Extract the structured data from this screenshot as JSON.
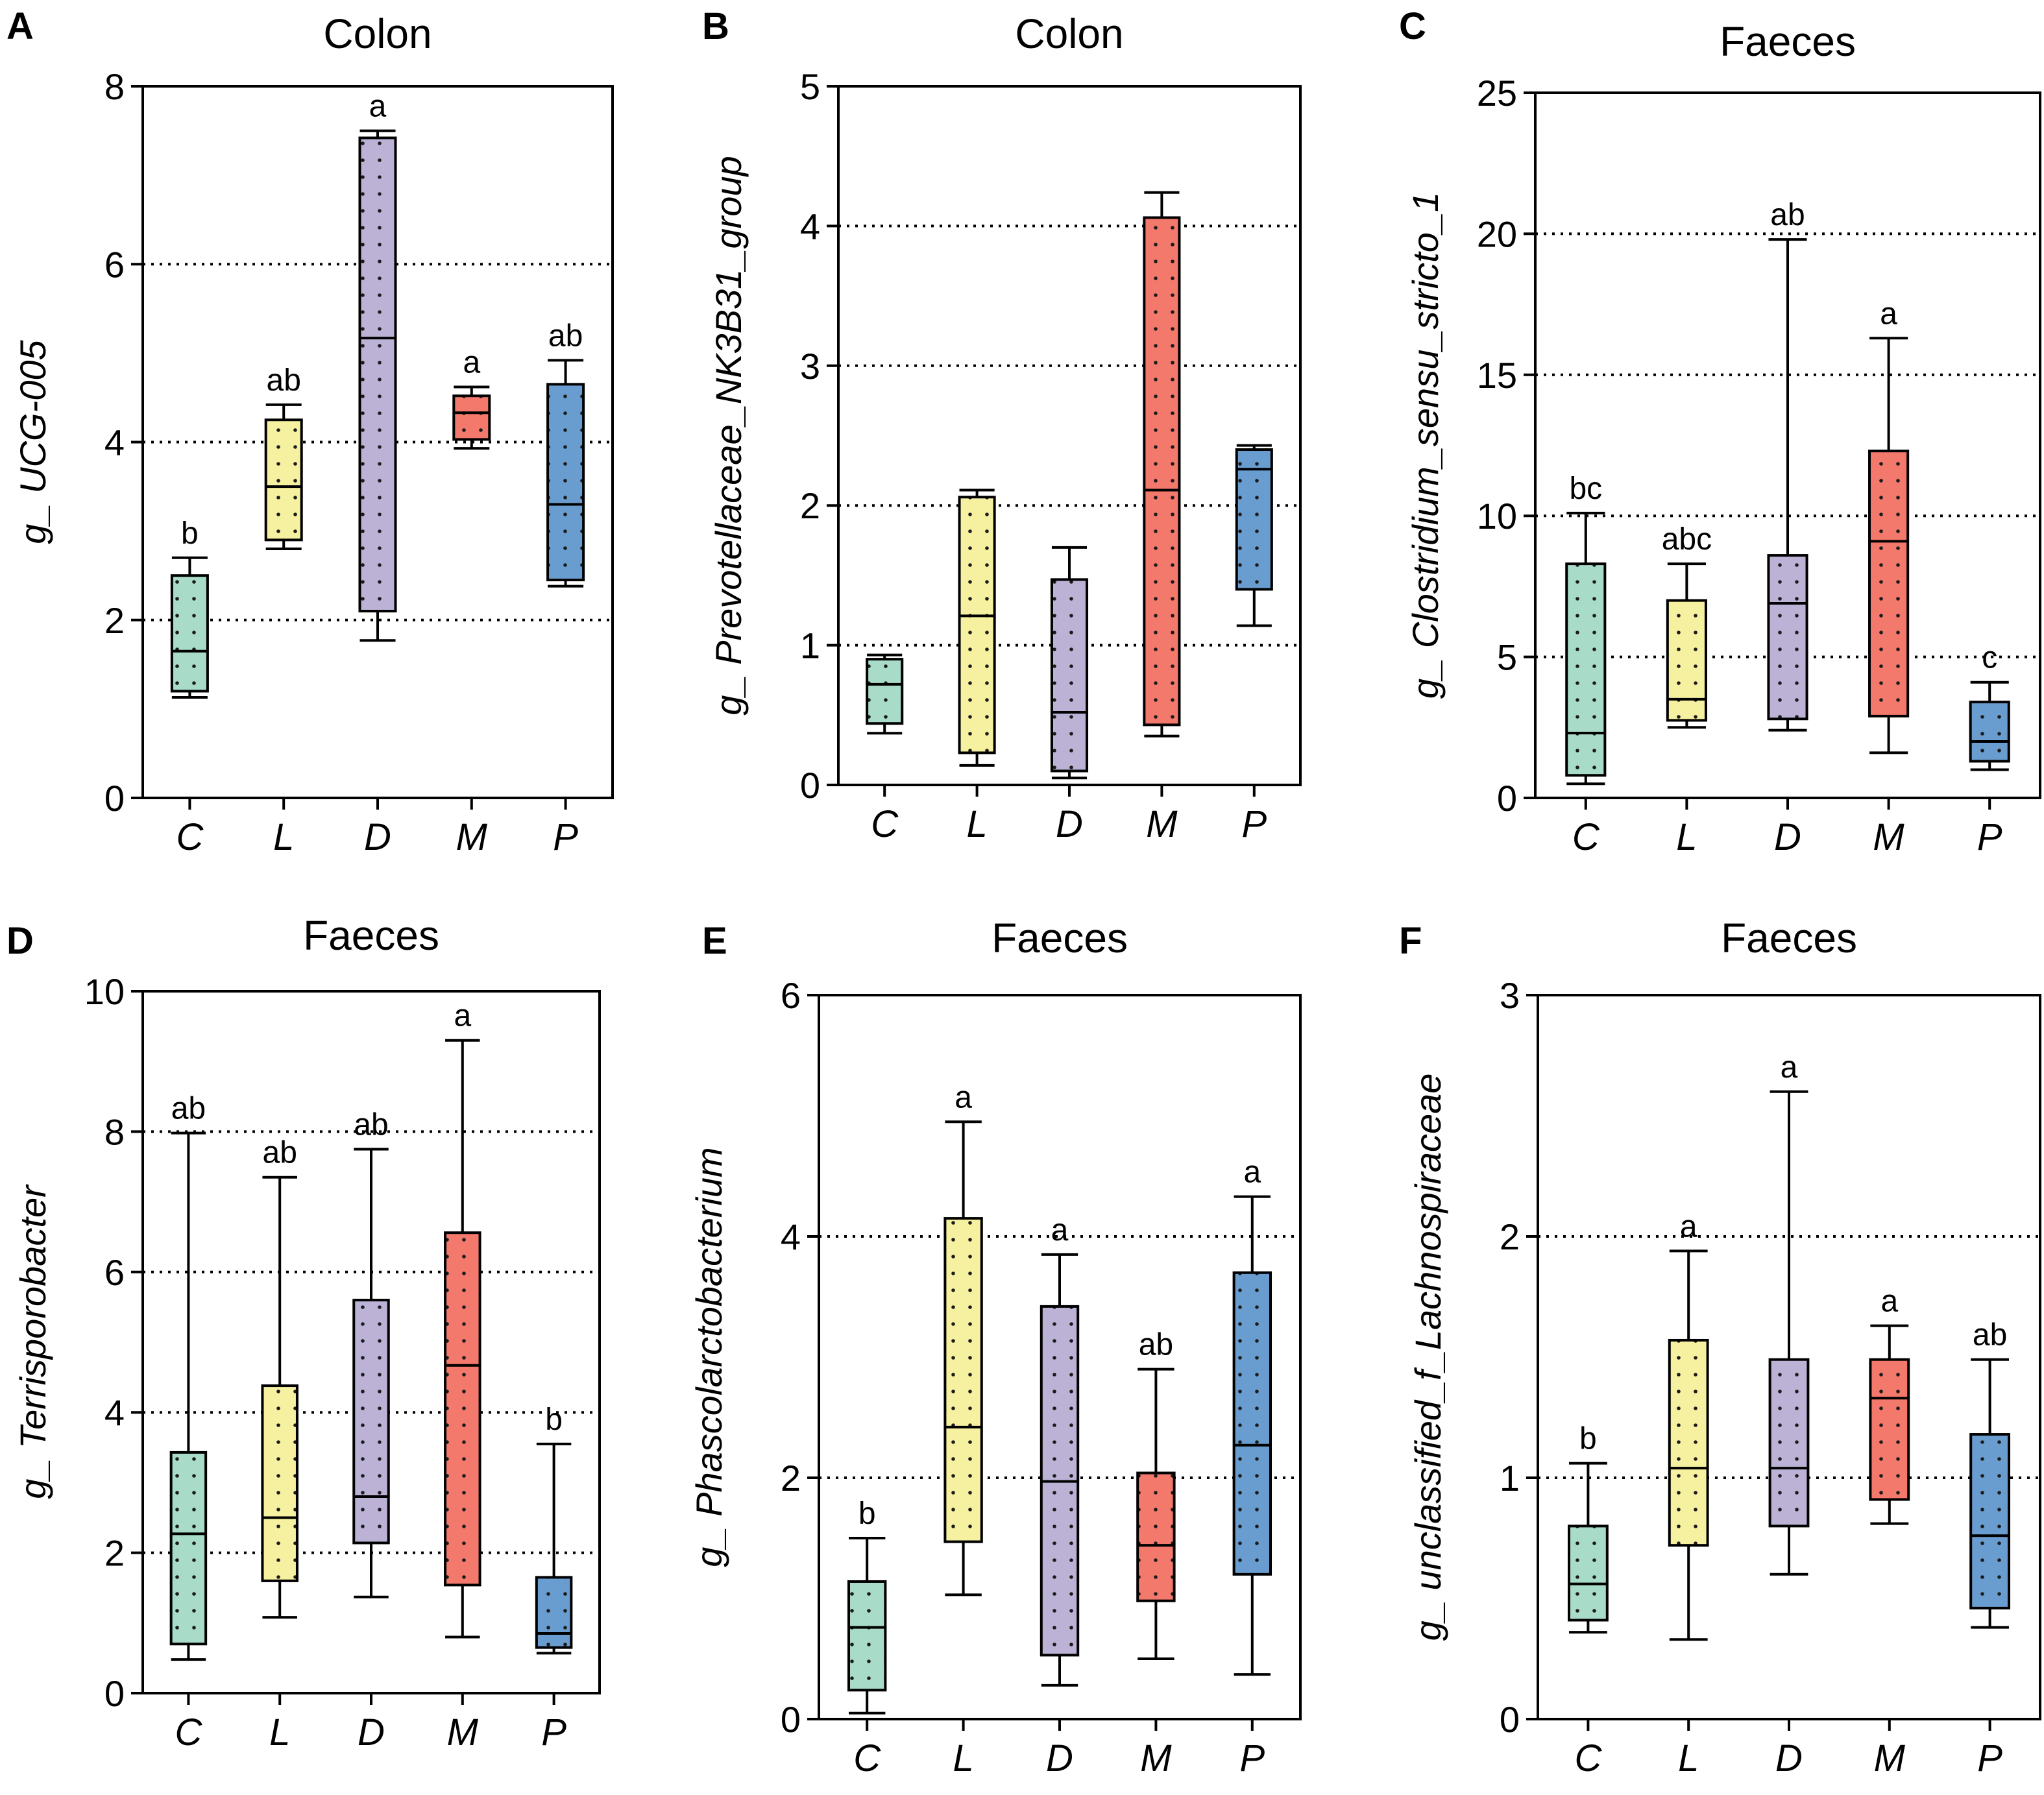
{
  "colors": {
    "C": "#a8dcc8",
    "L": "#f6f1a0",
    "D": "#bcb2d6",
    "M": "#f2796c",
    "P": "#6a9dcf"
  },
  "chart_data": [
    {
      "panel": "A",
      "type": "box",
      "title": "Colon",
      "ylabel": "g_ UCG-005",
      "ylim": [
        0,
        8
      ],
      "yticks": [
        0,
        2,
        4,
        6,
        8
      ],
      "gridlines": [
        2,
        4,
        6
      ],
      "categories": [
        "C",
        "L",
        "D",
        "M",
        "P"
      ],
      "boxes": [
        {
          "cat": "C",
          "min": 1.13,
          "q1": 1.2,
          "median": 1.65,
          "q3": 2.5,
          "max": 2.7,
          "sig": "b"
        },
        {
          "cat": "L",
          "min": 2.8,
          "q1": 2.9,
          "median": 3.5,
          "q3": 4.25,
          "max": 4.42,
          "sig": "ab"
        },
        {
          "cat": "D",
          "min": 1.77,
          "q1": 2.1,
          "median": 5.17,
          "q3": 7.42,
          "max": 7.5,
          "sig": "a"
        },
        {
          "cat": "M",
          "min": 3.93,
          "q1": 4.03,
          "median": 4.33,
          "q3": 4.52,
          "max": 4.62,
          "sig": "a"
        },
        {
          "cat": "P",
          "min": 2.38,
          "q1": 2.45,
          "median": 3.3,
          "q3": 4.65,
          "max": 4.92,
          "sig": "ab"
        }
      ]
    },
    {
      "panel": "B",
      "type": "box",
      "title": "Colon",
      "ylabel": "g_ Prevotellaceae_NK3B31_group",
      "ylim": [
        0,
        5
      ],
      "yticks": [
        0,
        1,
        2,
        3,
        4,
        5
      ],
      "gridlines": [
        1,
        2,
        3,
        4
      ],
      "categories": [
        "C",
        "L",
        "D",
        "M",
        "P"
      ],
      "boxes": [
        {
          "cat": "C",
          "min": 0.37,
          "q1": 0.44,
          "median": 0.72,
          "q3": 0.9,
          "max": 0.93,
          "sig": ""
        },
        {
          "cat": "L",
          "min": 0.14,
          "q1": 0.23,
          "median": 1.21,
          "q3": 2.06,
          "max": 2.11,
          "sig": ""
        },
        {
          "cat": "D",
          "min": 0.05,
          "q1": 0.1,
          "median": 0.52,
          "q3": 1.47,
          "max": 1.7,
          "sig": ""
        },
        {
          "cat": "M",
          "min": 0.35,
          "q1": 0.43,
          "median": 2.11,
          "q3": 4.06,
          "max": 4.24,
          "sig": ""
        },
        {
          "cat": "P",
          "min": 1.14,
          "q1": 1.4,
          "median": 2.26,
          "q3": 2.4,
          "max": 2.43,
          "sig": ""
        }
      ]
    },
    {
      "panel": "C",
      "type": "box",
      "title": "Faeces",
      "ylabel": "g_ Clostridium_sensu_stricto_1",
      "ylim": [
        0,
        25
      ],
      "yticks": [
        0,
        5,
        10,
        15,
        20,
        25
      ],
      "gridlines": [
        5,
        10,
        15,
        20
      ],
      "categories": [
        "C",
        "L",
        "D",
        "M",
        "P"
      ],
      "boxes": [
        {
          "cat": "C",
          "min": 0.5,
          "q1": 0.8,
          "median": 2.3,
          "q3": 8.3,
          "max": 10.1,
          "sig": "bc"
        },
        {
          "cat": "L",
          "min": 2.5,
          "q1": 2.75,
          "median": 3.5,
          "q3": 7.0,
          "max": 8.3,
          "sig": "abc"
        },
        {
          "cat": "D",
          "min": 2.4,
          "q1": 2.8,
          "median": 6.9,
          "q3": 8.6,
          "max": 19.8,
          "sig": "ab"
        },
        {
          "cat": "M",
          "min": 1.6,
          "q1": 2.9,
          "median": 9.1,
          "q3": 12.3,
          "max": 16.3,
          "sig": "a"
        },
        {
          "cat": "P",
          "min": 1.0,
          "q1": 1.3,
          "median": 2.0,
          "q3": 3.4,
          "max": 4.1,
          "sig": "c"
        }
      ]
    },
    {
      "panel": "D",
      "type": "box",
      "title": "Faeces",
      "ylabel": "g_ Terrisporobacter",
      "ylim": [
        0,
        10
      ],
      "yticks": [
        0,
        2,
        4,
        6,
        8,
        10
      ],
      "gridlines": [
        2,
        4,
        6,
        8
      ],
      "categories": [
        "C",
        "L",
        "D",
        "M",
        "P"
      ],
      "boxes": [
        {
          "cat": "C",
          "min": 0.48,
          "q1": 0.7,
          "median": 2.27,
          "q3": 3.43,
          "max": 7.98,
          "sig": "ab"
        },
        {
          "cat": "L",
          "min": 1.08,
          "q1": 1.6,
          "median": 2.5,
          "q3": 4.38,
          "max": 7.35,
          "sig": "ab"
        },
        {
          "cat": "D",
          "min": 1.37,
          "q1": 2.14,
          "median": 2.8,
          "q3": 5.6,
          "max": 7.75,
          "sig": "ab"
        },
        {
          "cat": "M",
          "min": 0.8,
          "q1": 1.54,
          "median": 4.67,
          "q3": 6.56,
          "max": 9.3,
          "sig": "a"
        },
        {
          "cat": "P",
          "min": 0.57,
          "q1": 0.65,
          "median": 0.85,
          "q3": 1.65,
          "max": 3.55,
          "sig": "b"
        }
      ]
    },
    {
      "panel": "E",
      "type": "box",
      "title": "Faeces",
      "ylabel": "g_ Phascolarctobacterium",
      "ylim": [
        0,
        6
      ],
      "yticks": [
        0,
        2,
        4,
        6
      ],
      "gridlines": [
        2,
        4
      ],
      "categories": [
        "C",
        "L",
        "D",
        "M",
        "P"
      ],
      "boxes": [
        {
          "cat": "C",
          "min": 0.05,
          "q1": 0.24,
          "median": 0.76,
          "q3": 1.14,
          "max": 1.5,
          "sig": "b"
        },
        {
          "cat": "L",
          "min": 1.03,
          "q1": 1.47,
          "median": 2.42,
          "q3": 4.15,
          "max": 4.95,
          "sig": "a"
        },
        {
          "cat": "D",
          "min": 0.28,
          "q1": 0.53,
          "median": 1.97,
          "q3": 3.42,
          "max": 3.85,
          "sig": "a"
        },
        {
          "cat": "M",
          "min": 0.5,
          "q1": 0.98,
          "median": 1.44,
          "q3": 2.04,
          "max": 2.9,
          "sig": "ab"
        },
        {
          "cat": "P",
          "min": 0.37,
          "q1": 1.2,
          "median": 2.27,
          "q3": 3.7,
          "max": 4.33,
          "sig": "a"
        }
      ]
    },
    {
      "panel": "F",
      "type": "box",
      "title": "Faeces",
      "ylabel": "g_ unclassified_f_Lachnospiraceae",
      "ylim": [
        0,
        3
      ],
      "yticks": [
        0,
        1,
        2,
        3
      ],
      "gridlines": [
        1,
        2
      ],
      "categories": [
        "C",
        "L",
        "D",
        "M",
        "P"
      ],
      "boxes": [
        {
          "cat": "C",
          "min": 0.36,
          "q1": 0.41,
          "median": 0.56,
          "q3": 0.8,
          "max": 1.06,
          "sig": "b"
        },
        {
          "cat": "L",
          "min": 0.33,
          "q1": 0.72,
          "median": 1.04,
          "q3": 1.57,
          "max": 1.94,
          "sig": "a"
        },
        {
          "cat": "D",
          "min": 0.6,
          "q1": 0.8,
          "median": 1.04,
          "q3": 1.49,
          "max": 2.6,
          "sig": "a"
        },
        {
          "cat": "M",
          "min": 0.81,
          "q1": 0.91,
          "median": 1.33,
          "q3": 1.49,
          "max": 1.63,
          "sig": "a"
        },
        {
          "cat": "P",
          "min": 0.38,
          "q1": 0.46,
          "median": 0.76,
          "q3": 1.18,
          "max": 1.49,
          "sig": "ab"
        }
      ]
    }
  ]
}
